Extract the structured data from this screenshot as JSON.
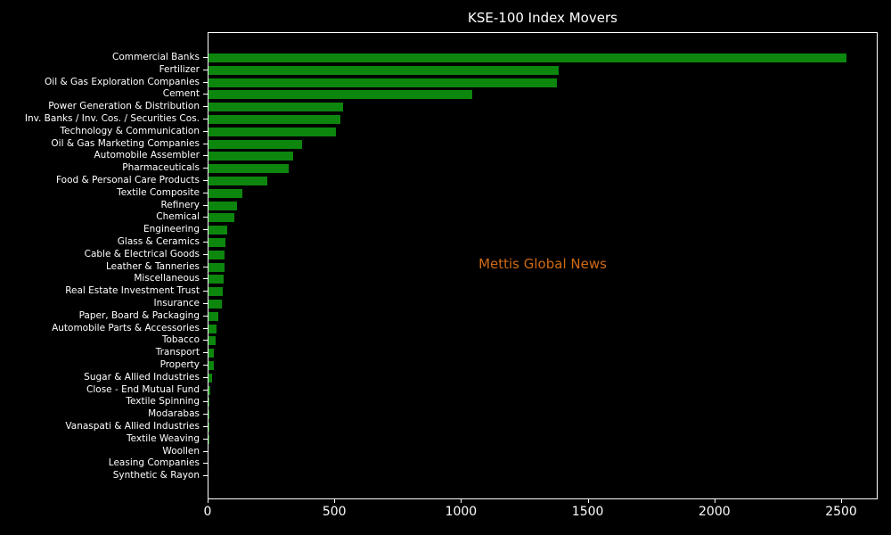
{
  "chart_data": {
    "type": "bar",
    "orientation": "horizontal",
    "title": "KSE-100 Index Movers",
    "xlabel": "",
    "ylabel": "",
    "categories": [
      "Commercial Banks",
      "Fertilizer",
      "Oil & Gas Exploration Companies",
      "Cement",
      "Power Generation & Distribution",
      "Inv. Banks / Inv. Cos. / Securities Cos.",
      "Technology & Communication",
      "Oil & Gas Marketing Companies",
      "Automobile Assembler",
      "Pharmaceuticals",
      "Food & Personal Care Products",
      "Textile Composite",
      "Refinery",
      "Chemical",
      "Engineering",
      "Glass & Ceramics",
      "Cable & Electrical Goods",
      "Leather & Tanneries",
      "Miscellaneous",
      "Real Estate Investment Trust",
      "Insurance",
      "Paper, Board & Packaging",
      "Automobile Parts & Accessories",
      "Tobacco",
      "Transport",
      "Property",
      "Sugar & Allied Industries",
      "Close - End Mutual Fund",
      "Textile Spinning",
      "Modarabas",
      "Vanaspati & Allied Industries",
      "Textile Weaving",
      "Woollen",
      "Leasing Companies",
      "Synthetic & Rayon"
    ],
    "values": [
      2516,
      1381,
      1375,
      1040,
      532,
      522,
      504,
      370,
      334,
      318,
      231,
      132,
      111,
      102,
      75,
      68,
      64,
      62,
      60,
      56,
      52,
      38,
      33,
      28,
      21,
      20,
      14,
      6,
      2,
      1,
      1,
      1,
      0,
      0,
      0
    ],
    "xlim": [
      0,
      2644
    ],
    "xticks": [
      0,
      500,
      1000,
      1500,
      2000,
      2500
    ],
    "grid": false,
    "legend": false,
    "watermark": "Mettis Global News",
    "colors": {
      "background": "#000000",
      "bar": "#0d860d",
      "axis": "#ffffff",
      "text": "#ffffff",
      "watermark": "#cf6a14"
    }
  }
}
